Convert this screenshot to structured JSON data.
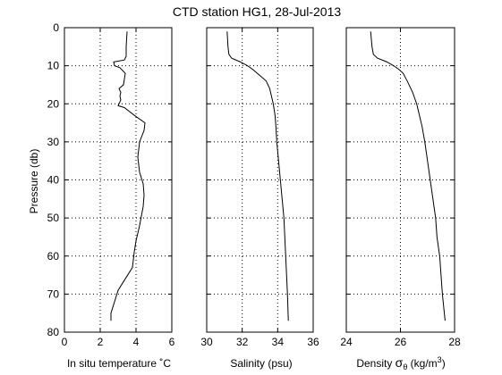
{
  "chart_data": {
    "type": "line",
    "title": "CTD station HG1, 28-Jul-2013",
    "ylabel": "Pressure (db)",
    "ylim": [
      0,
      80
    ],
    "y_inverted": true,
    "yticks": [
      0,
      10,
      20,
      30,
      40,
      50,
      60,
      70,
      80
    ],
    "grid": true,
    "panels": [
      {
        "xlabel": "In situ temperature ˚C",
        "xlim": [
          0,
          6
        ],
        "xticks": [
          0,
          2,
          4,
          6
        ],
        "series": [
          {
            "x": [
              3.5,
              3.45,
              3.45,
              3.35,
              2.75,
              2.8,
              3.1,
              3.4,
              3.3,
              3.05,
              3.15,
              3.1,
              3.15,
              3.0,
              3.35,
              3.9,
              4.5,
              4.45,
              4.2,
              4.1,
              4.2,
              4.4,
              4.45,
              4.4,
              4.2,
              4.0,
              3.9,
              3.8,
              3.4,
              3.0,
              2.8,
              2.6,
              2.6
            ],
            "y": [
              1,
              5,
              7.5,
              8.5,
              9,
              10,
              10.5,
              12,
              15,
              16,
              17,
              18,
              19,
              20.5,
              21,
              23,
              25,
              27,
              30,
              34,
              38,
              41,
              44,
              47,
              52,
              56,
              59,
              63,
              66,
              69,
              72,
              75,
              77
            ]
          }
        ]
      },
      {
        "xlabel": "Salinity (psu)",
        "xlim": [
          30,
          36
        ],
        "xticks": [
          30,
          32,
          34,
          36
        ],
        "series": [
          {
            "x": [
              31.15,
              31.2,
              31.25,
              31.4,
              31.9,
              32.3,
              32.6,
              32.85,
              33.1,
              33.35,
              33.55,
              33.75,
              33.85,
              33.9,
              33.95,
              34.05,
              34.15,
              34.25,
              34.35,
              34.45,
              34.55,
              34.6
            ],
            "y": [
              1,
              5,
              7,
              8,
              9,
              10,
              11,
              12,
              13,
              14,
              16,
              20,
              23,
              26,
              30,
              35,
              40,
              45,
              50,
              60,
              70,
              77
            ]
          }
        ]
      },
      {
        "xlabel_prefix": "Density ",
        "xlabel_symbol": "σ",
        "xlabel_subscript": "θ",
        "xlabel_units": " (kg/m",
        "xlabel_superscript": "3",
        "xlabel_close": ")",
        "xlim": [
          24,
          28
        ],
        "xticks": [
          24,
          26,
          28
        ],
        "series": [
          {
            "x": [
              24.9,
              24.95,
              25.0,
              25.15,
              25.5,
              25.75,
              25.95,
              26.1,
              26.25,
              26.45,
              26.6,
              26.7,
              26.8,
              26.9,
              27.0,
              27.1,
              27.2,
              27.3,
              27.35,
              27.45,
              27.55,
              27.65
            ],
            "y": [
              1,
              5,
              7,
              8,
              9,
              10,
              11,
              12,
              14,
              17,
              20,
              23,
              26,
              30,
              35,
              40,
              45,
              50,
              55,
              60,
              70,
              77
            ]
          }
        ]
      }
    ]
  }
}
